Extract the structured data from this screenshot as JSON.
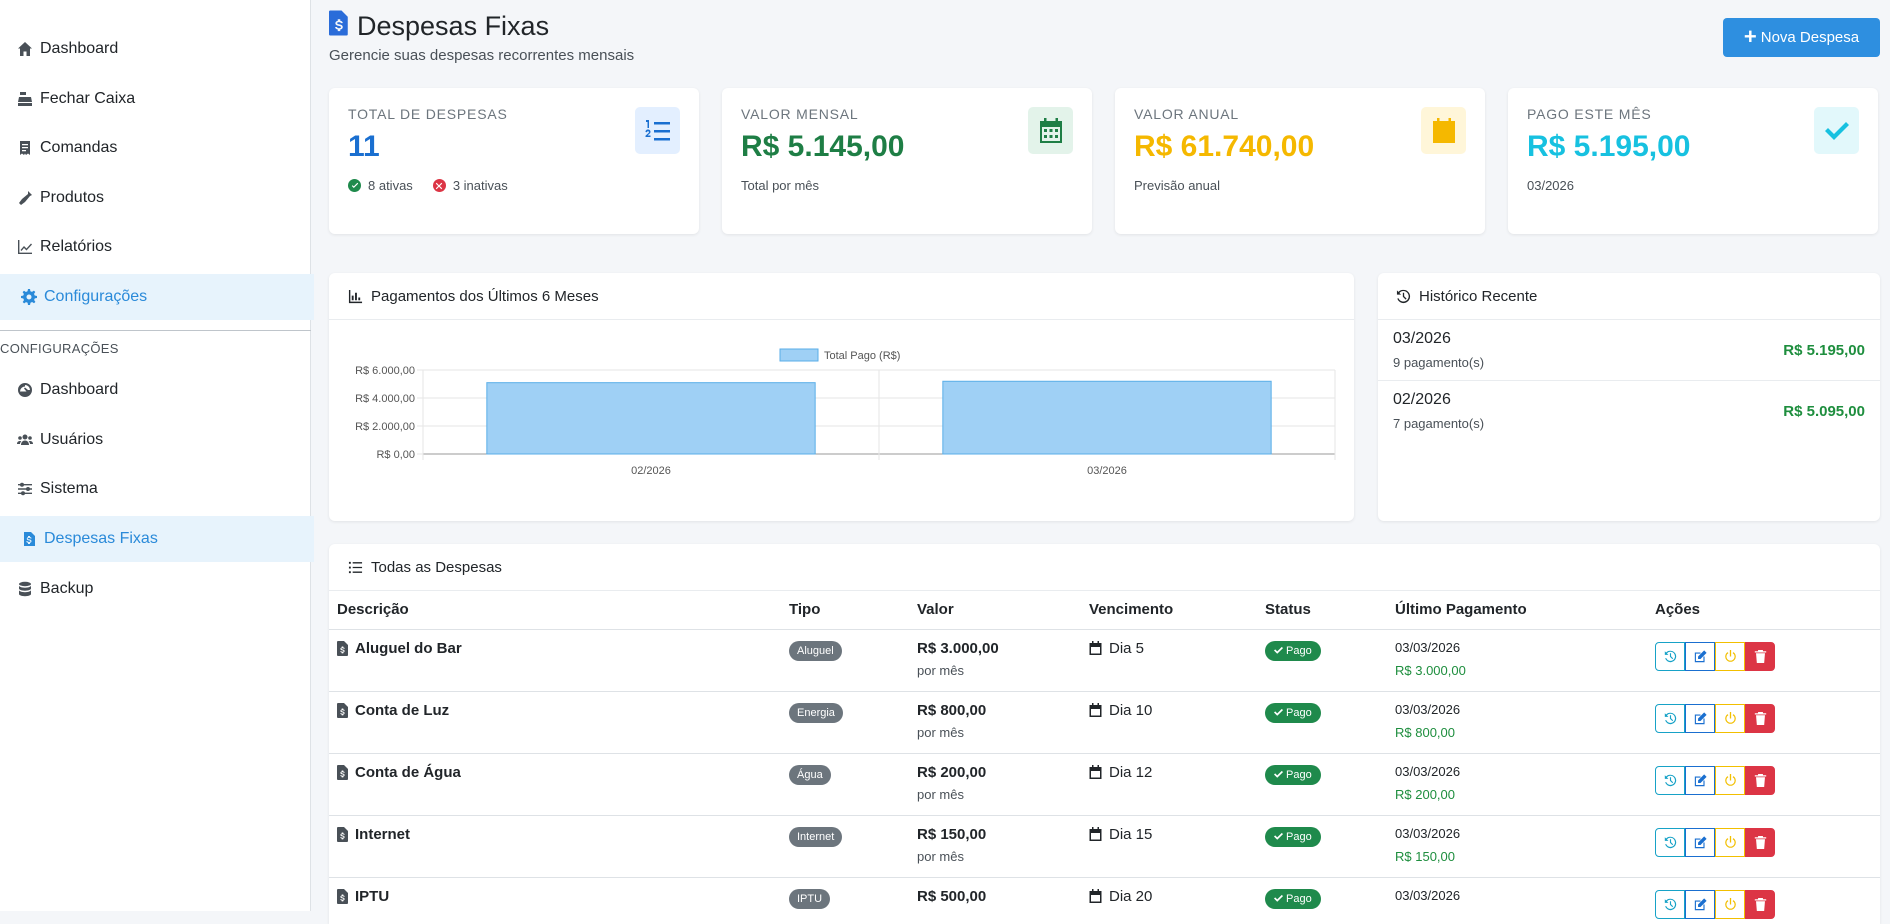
{
  "sidebar": {
    "items": [
      {
        "label": "Dashboard",
        "icon": "home-icon"
      },
      {
        "label": "Fechar Caixa",
        "icon": "cash-register-icon"
      },
      {
        "label": "Comandas",
        "icon": "receipt-icon"
      },
      {
        "label": "Produtos",
        "icon": "bottle-icon"
      },
      {
        "label": "Relatórios",
        "icon": "line-chart-icon"
      },
      {
        "label": "Configurações",
        "icon": "gear-icon",
        "active": true
      }
    ],
    "section_title": "CONFIGURAÇÕES",
    "config_items": [
      {
        "label": "Dashboard",
        "icon": "gauge-icon"
      },
      {
        "label": "Usuários",
        "icon": "users-icon"
      },
      {
        "label": "Sistema",
        "icon": "sliders-icon"
      },
      {
        "label": "Despesas Fixas",
        "icon": "file-invoice-dollar-icon",
        "active": true
      },
      {
        "label": "Backup",
        "icon": "database-icon"
      }
    ]
  },
  "header": {
    "title": "Despesas Fixas",
    "subtitle": "Gerencie suas despesas recorrentes mensais",
    "new_button": "Nova Despesa"
  },
  "stats": [
    {
      "label": "TOTAL DE DESPESAS",
      "value": "11",
      "color": "#1a6fd0",
      "icon": "list-ol-icon",
      "active_text": "8 ativas",
      "inactive_text": "3 inativas"
    },
    {
      "label": "VALOR MENSAL",
      "value": "R$ 5.145,00",
      "color": "#1e7e45",
      "icon": "calendar-days-icon",
      "foot": "Total por mês"
    },
    {
      "label": "VALOR ANUAL",
      "value": "R$ 61.740,00",
      "color": "#f5b800",
      "icon": "calendar-icon",
      "foot": "Previsão anual"
    },
    {
      "label": "PAGO ESTE MÊS",
      "value": "R$ 5.195,00",
      "color": "#17c1e0",
      "icon": "check-icon",
      "foot": "03/2026"
    }
  ],
  "chart_panel": {
    "title": "Pagamentos dos Últimos 6 Meses"
  },
  "chart_data": {
    "type": "bar",
    "categories": [
      "02/2026",
      "03/2026"
    ],
    "series": [
      {
        "name": "Total Pago (R$)",
        "values": [
          5095,
          5195
        ]
      }
    ],
    "ylim": [
      0,
      6000
    ],
    "yticks": [
      "R$ 0,00",
      "R$ 2.000,00",
      "R$ 4.000,00",
      "R$ 6.000,00"
    ],
    "ytick_values": [
      0,
      2000,
      4000,
      6000
    ],
    "legend": "top-center",
    "color": "#9fd0f5"
  },
  "history": {
    "title": "Histórico Recente",
    "items": [
      {
        "month": "03/2026",
        "count": "9 pagamento(s)",
        "amount": "R$ 5.195,00"
      },
      {
        "month": "02/2026",
        "count": "7 pagamento(s)",
        "amount": "R$ 5.095,00"
      }
    ]
  },
  "table": {
    "title": "Todas as Despesas",
    "headers": [
      "Descrição",
      "Tipo",
      "Valor",
      "Vencimento",
      "Status",
      "Último Pagamento",
      "Ações"
    ],
    "rows": [
      {
        "desc": "Aluguel do Bar",
        "tipo": "Aluguel",
        "valor": "R$ 3.000,00",
        "freq": "por mês",
        "venc": "Dia 5",
        "status": "Pago",
        "ult_date": "03/03/2026",
        "ult_val": "R$ 3.000,00"
      },
      {
        "desc": "Conta de Luz",
        "tipo": "Energia",
        "valor": "R$ 800,00",
        "freq": "por mês",
        "venc": "Dia 10",
        "status": "Pago",
        "ult_date": "03/03/2026",
        "ult_val": "R$ 800,00"
      },
      {
        "desc": "Conta de Água",
        "tipo": "Água",
        "valor": "R$ 200,00",
        "freq": "por mês",
        "venc": "Dia 12",
        "status": "Pago",
        "ult_date": "03/03/2026",
        "ult_val": "R$ 200,00"
      },
      {
        "desc": "Internet",
        "tipo": "Internet",
        "valor": "R$ 150,00",
        "freq": "por mês",
        "venc": "Dia 15",
        "status": "Pago",
        "ult_date": "03/03/2026",
        "ult_val": "R$ 150,00"
      },
      {
        "desc": "IPTU",
        "tipo": "IPTU",
        "valor": "R$ 500,00",
        "freq": "",
        "venc": "Dia 20",
        "status": "Pago",
        "ult_date": "03/03/2026",
        "ult_val": ""
      }
    ]
  }
}
